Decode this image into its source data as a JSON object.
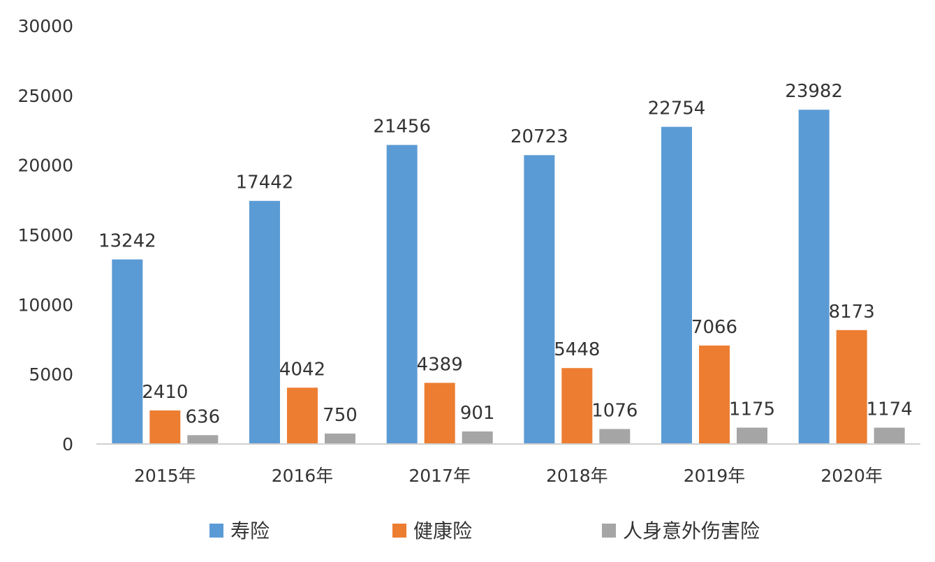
{
  "chart_data": {
    "type": "bar",
    "title": "",
    "xlabel": "",
    "ylabel": "",
    "categories": [
      "2015年",
      "2016年",
      "2017年",
      "2018年",
      "2019年",
      "2020年"
    ],
    "series": [
      {
        "name": "寿险",
        "color": "#5b9bd5",
        "values": [
          13242,
          17442,
          21456,
          20723,
          22754,
          23982
        ]
      },
      {
        "name": "健康险",
        "color": "#ed7d31",
        "values": [
          2410,
          4042,
          4389,
          5448,
          7066,
          8173
        ]
      },
      {
        "name": "人身意外伤害险",
        "color": "#a5a5a5",
        "values": [
          636,
          750,
          901,
          1076,
          1175,
          1174
        ]
      }
    ],
    "ylim": [
      0,
      30000
    ],
    "yticks": [
      0,
      5000,
      10000,
      15000,
      20000,
      25000,
      30000
    ],
    "ytick_labels": [
      "0",
      "5000",
      "10000",
      "15000",
      "20000",
      "25000",
      "30000"
    ],
    "grid": false,
    "data_labels": true,
    "legend_position": "bottom"
  }
}
